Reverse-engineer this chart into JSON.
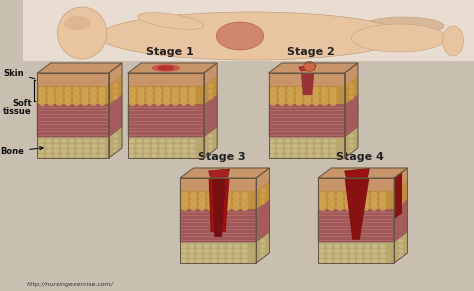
{
  "background_color": "#c8bfb0",
  "body_color": "#e8c4a0",
  "sore_color": "#c87860",
  "skin_color": "#d4956a",
  "fat_color": "#c8953a",
  "fat_color2": "#d4a855",
  "muscle_color": "#b06868",
  "muscle_color2": "#c07878",
  "bone_color": "#c0b080",
  "bone_color2": "#d0c090",
  "wound_red": "#aa2222",
  "wound_dark": "#881111",
  "stage_labels": [
    "Stage 1",
    "Stage 2",
    "Stage 3",
    "Stage 4"
  ],
  "layer_labels": [
    "Skin",
    "Soft\ntissue",
    "Bone"
  ],
  "url_text": "http://nursingexercise.com/",
  "label_color": "#111111",
  "stage_label_color": "#222222",
  "stage_label_fontsize": 8,
  "label_fontsize": 6
}
